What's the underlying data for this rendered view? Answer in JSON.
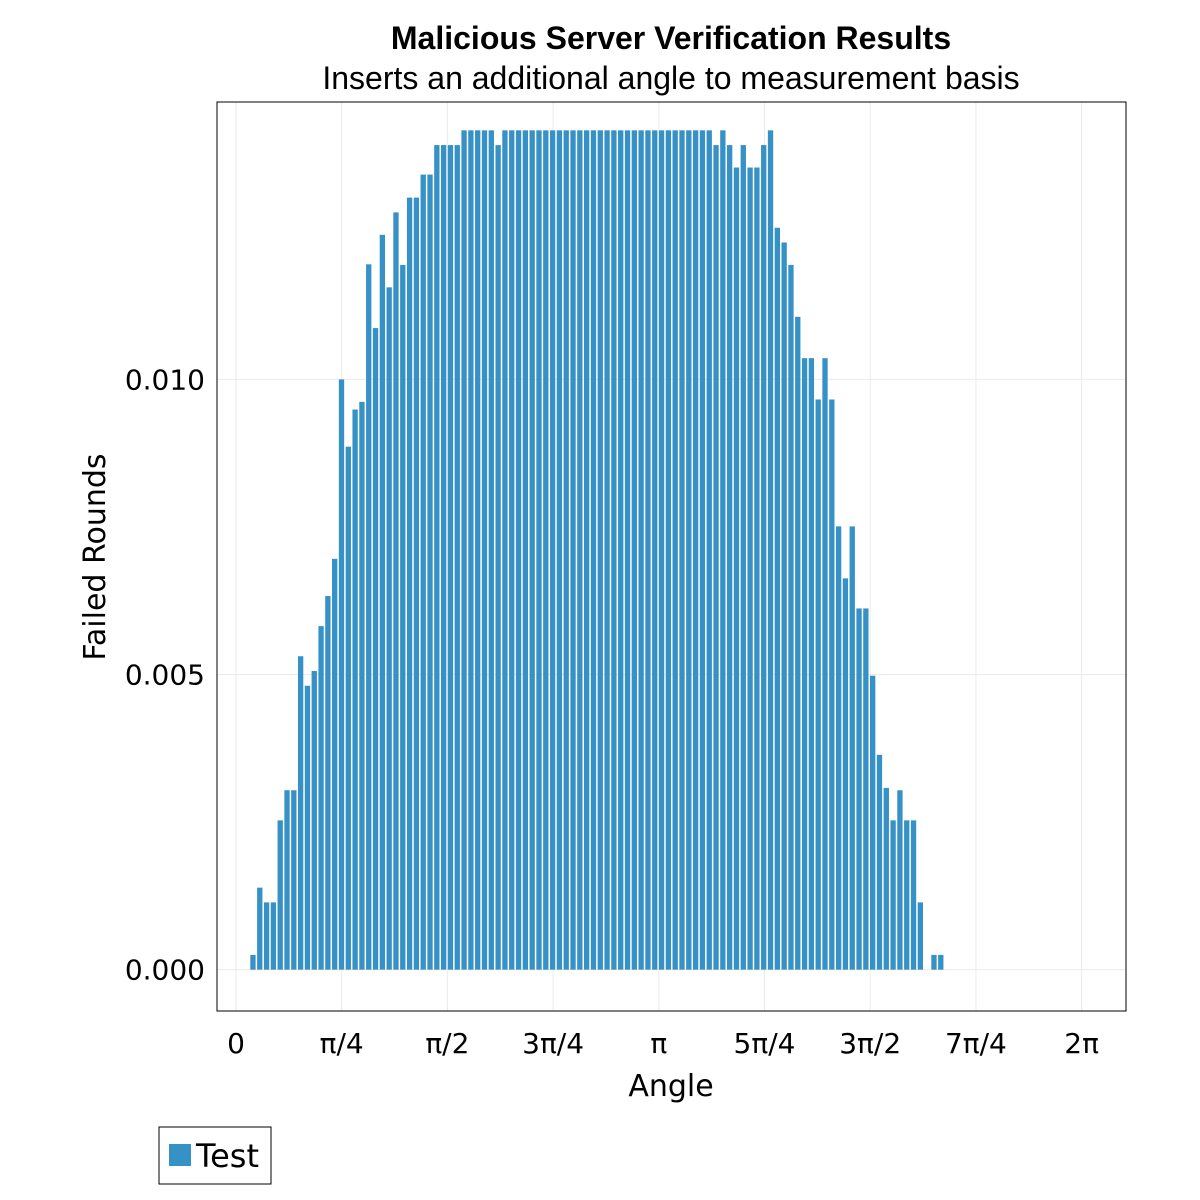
{
  "chart_data": {
    "type": "bar",
    "title": "Malicious Server Verification Results",
    "subtitle": "Inserts an additional angle to measurement basis",
    "xlabel": "Angle",
    "ylabel": "Failed Rounds",
    "xlim": [
      -0.141,
      6.613
    ],
    "ylim": [
      -0.0007,
      0.0147
    ],
    "grid": true,
    "legend_position": "bottom-left",
    "colors": {
      "bar": "#3591c6",
      "grid": "#ebebeb",
      "frame": "#000000"
    },
    "x_ticks": [
      {
        "value": 0,
        "label": "0"
      },
      {
        "value": 0.7854,
        "label": "π/4"
      },
      {
        "value": 1.5708,
        "label": "π/2"
      },
      {
        "value": 2.3562,
        "label": "3π/4"
      },
      {
        "value": 3.1416,
        "label": "π"
      },
      {
        "value": 3.927,
        "label": "5π/4"
      },
      {
        "value": 4.7124,
        "label": "3π/2"
      },
      {
        "value": 5.4978,
        "label": "7π/4"
      },
      {
        "value": 6.2832,
        "label": "2π"
      }
    ],
    "y_ticks": [
      {
        "value": 0.0,
        "label": "0.000"
      },
      {
        "value": 0.005,
        "label": "0.005"
      },
      {
        "value": 0.01,
        "label": "0.010"
      }
    ],
    "series": [
      {
        "name": "Test",
        "x_start": 0.1262,
        "bin_width": 0.0506,
        "values": [
          0.00025,
          0.00139,
          0.00114,
          0.00114,
          0.00253,
          0.00304,
          0.00304,
          0.00531,
          0.00481,
          0.00506,
          0.00582,
          0.00633,
          0.00696,
          0.01,
          0.00886,
          0.00949,
          0.00962,
          0.01195,
          0.01087,
          0.01245,
          0.01156,
          0.01283,
          0.01194,
          0.01308,
          0.01308,
          0.01347,
          0.01347,
          0.01397,
          0.01397,
          0.01397,
          0.01397,
          0.01422,
          0.01422,
          0.01422,
          0.01422,
          0.01422,
          0.01397,
          0.01422,
          0.01422,
          0.01422,
          0.01422,
          0.01422,
          0.01422,
          0.01422,
          0.01422,
          0.01422,
          0.01422,
          0.01422,
          0.01422,
          0.01422,
          0.01422,
          0.01422,
          0.01422,
          0.01422,
          0.01422,
          0.01422,
          0.01422,
          0.01422,
          0.01422,
          0.01422,
          0.01422,
          0.01422,
          0.01422,
          0.01422,
          0.01422,
          0.01422,
          0.01422,
          0.01422,
          0.01397,
          0.01422,
          0.01397,
          0.01359,
          0.01397,
          0.01359,
          0.01359,
          0.01397,
          0.01422,
          0.01257,
          0.01232,
          0.01194,
          0.01106,
          0.01036,
          0.01036,
          0.00966,
          0.01036,
          0.00966,
          0.00751,
          0.00663,
          0.00751,
          0.00612,
          0.00612,
          0.00498,
          0.00364,
          0.00308,
          0.00253,
          0.00304,
          0.00253,
          0.00253,
          0.00114,
          0.0,
          0.00025,
          0.00025
        ]
      }
    ]
  }
}
